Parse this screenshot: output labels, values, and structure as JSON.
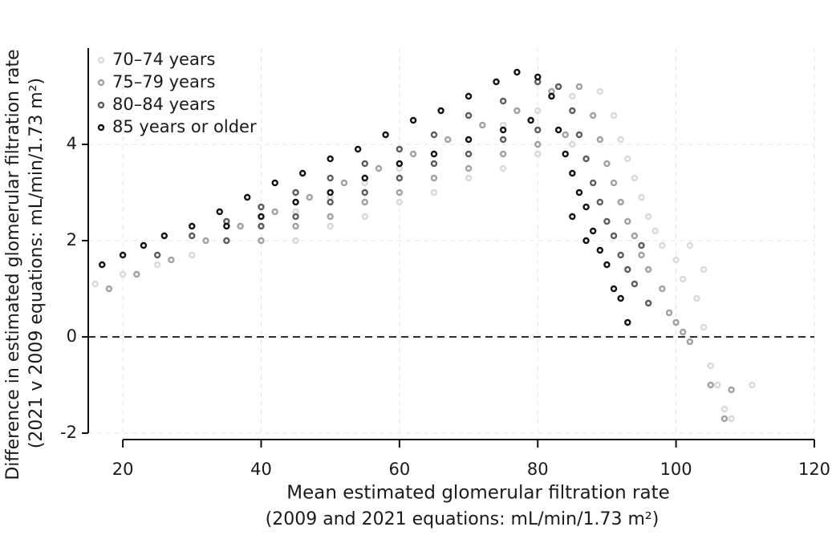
{
  "chart_data": {
    "type": "scatter",
    "ylabel": [
      "Difference in estimated glomerular filtration rate",
      "(2021 v 2009 equations: mL/min/1.73 m²)"
    ],
    "xlabel": [
      "Mean estimated glomerular filtration rate",
      "(2009 and 2021 equations: mL/min/1.73 m²)"
    ],
    "xlim": [
      15,
      120
    ],
    "ylim": [
      -2,
      6
    ],
    "xticks": [
      20,
      40,
      60,
      80,
      100,
      120
    ],
    "yticks": [
      -2,
      0,
      2,
      4
    ],
    "grid": true,
    "reference_line": 0,
    "legend": "upper left",
    "series": [
      {
        "name": "70–74 years",
        "color": "#d6dada",
        "x": [
          16,
          20,
          25,
          30,
          35,
          40,
          45,
          50,
          55,
          60,
          65,
          70,
          75,
          80,
          85,
          89,
          45,
          50,
          55,
          60,
          65,
          70,
          75,
          80,
          85,
          91,
          92,
          93,
          94,
          95,
          96,
          97,
          98,
          100,
          101,
          103,
          104,
          105,
          106,
          107,
          108,
          111,
          102,
          104
        ],
        "values": [
          1.1,
          1.3,
          1.5,
          1.7,
          2.0,
          2.3,
          2.6,
          2.9,
          3.2,
          3.5,
          3.8,
          4.1,
          4.4,
          4.7,
          5.0,
          5.1,
          2.0,
          2.3,
          2.5,
          2.8,
          3.0,
          3.3,
          3.5,
          3.8,
          4.0,
          4.6,
          4.1,
          3.7,
          3.3,
          2.9,
          2.5,
          2.2,
          1.9,
          1.6,
          1.2,
          0.8,
          0.2,
          -0.6,
          -1.0,
          -1.5,
          -1.7,
          -1.0,
          1.9,
          1.4
        ]
      },
      {
        "name": "75–79 years",
        "color": "#9ea2a2",
        "x": [
          18,
          22,
          27,
          32,
          37,
          42,
          47,
          52,
          57,
          62,
          67,
          72,
          77,
          82,
          86,
          40,
          45,
          50,
          55,
          60,
          65,
          70,
          75,
          80,
          84,
          88,
          89,
          90,
          91,
          92,
          93,
          94,
          95,
          96,
          98,
          99,
          100,
          101,
          102,
          105,
          107,
          108
        ],
        "values": [
          1.0,
          1.3,
          1.6,
          2.0,
          2.3,
          2.6,
          2.9,
          3.2,
          3.5,
          3.8,
          4.1,
          4.4,
          4.7,
          5.1,
          5.2,
          2.0,
          2.3,
          2.5,
          2.8,
          3.0,
          3.3,
          3.5,
          3.8,
          4.0,
          4.2,
          4.6,
          4.1,
          3.6,
          3.2,
          2.8,
          2.4,
          2.1,
          1.7,
          1.4,
          1.0,
          0.5,
          0.3,
          0.1,
          -0.1,
          -1.0,
          -1.7,
          -1.1
        ]
      },
      {
        "name": "80–84 years",
        "color": "#595d5d",
        "x": [
          25,
          30,
          35,
          40,
          45,
          50,
          55,
          60,
          65,
          70,
          75,
          80,
          83,
          35,
          40,
          45,
          50,
          55,
          60,
          65,
          70,
          75,
          80,
          85,
          86,
          87,
          88,
          89,
          90,
          91,
          92,
          93,
          94,
          96,
          95
        ],
        "values": [
          1.7,
          2.1,
          2.4,
          2.7,
          3.0,
          3.3,
          3.6,
          3.9,
          4.2,
          4.6,
          4.9,
          5.3,
          5.2,
          2.0,
          2.3,
          2.5,
          2.8,
          3.0,
          3.3,
          3.6,
          3.8,
          4.1,
          4.3,
          4.7,
          4.2,
          3.7,
          3.2,
          2.8,
          2.4,
          2.1,
          1.7,
          1.4,
          1.1,
          0.7,
          1.9
        ]
      },
      {
        "name": "85 years or older",
        "color": "#111111",
        "x": [
          17,
          20,
          23,
          26,
          30,
          34,
          38,
          42,
          46,
          50,
          54,
          58,
          62,
          66,
          70,
          74,
          77,
          80,
          35,
          40,
          45,
          50,
          55,
          60,
          65,
          70,
          75,
          79,
          82,
          83,
          84,
          85,
          86,
          87,
          88,
          89,
          90,
          91,
          92,
          93,
          85,
          87
        ],
        "values": [
          1.5,
          1.7,
          1.9,
          2.1,
          2.3,
          2.6,
          2.9,
          3.2,
          3.4,
          3.7,
          3.9,
          4.2,
          4.5,
          4.7,
          5.0,
          5.3,
          5.5,
          5.4,
          2.3,
          2.5,
          2.8,
          3.0,
          3.3,
          3.6,
          3.8,
          4.1,
          4.3,
          4.5,
          5.0,
          4.3,
          3.8,
          3.4,
          3.0,
          2.7,
          2.2,
          1.8,
          1.5,
          1.0,
          0.8,
          0.3,
          2.5,
          2.0
        ]
      }
    ]
  }
}
